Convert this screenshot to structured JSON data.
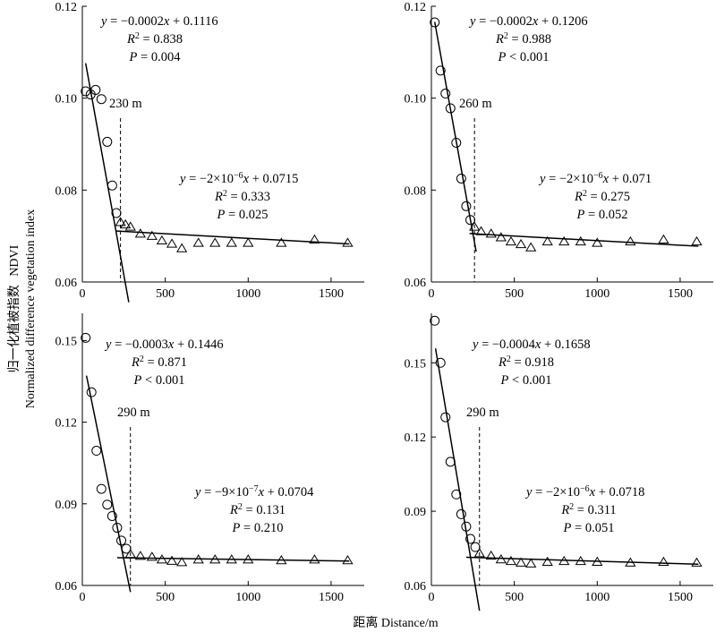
{
  "figure": {
    "y_axis_label_cn": "归一化植被指数",
    "y_axis_label_en": "NDVI",
    "y_axis_label_en2": "Normalized difference vegetation index",
    "x_axis_label": "距离 Distance/m"
  },
  "chart_data": [
    {
      "type": "scatter",
      "xlim": [
        0,
        1700
      ],
      "ylim": [
        0.06,
        0.12
      ],
      "xticks": [
        0,
        500,
        1000,
        1500
      ],
      "yticks": [
        0.06,
        0.08,
        0.1,
        0.12
      ],
      "ytick_labels": [
        "0.06",
        "0.08",
        "0.10",
        "0.12"
      ],
      "threshold": 230,
      "threshold_label": "230 m",
      "near_fit": {
        "eq": "y = −0.0002x + 0.1116",
        "r2": "R² = 0.838",
        "p": "P = 0.004",
        "slope": -0.0002,
        "intercept": 0.1116,
        "x_range": [
          20,
          280
        ]
      },
      "far_fit": {
        "eq": "y = −2×10⁻⁶x + 0.0715",
        "r2": "R² = 0.333",
        "p": "P = 0.025",
        "slope": -2e-06,
        "intercept": 0.0715,
        "x_range": [
          200,
          1610
        ]
      },
      "series": [
        {
          "name": "",
          "marker": "circle",
          "x": [
            20,
            50,
            80,
            115,
            150,
            180,
            205
          ],
          "y": [
            0.1015,
            0.1008,
            0.1018,
            0.0998,
            0.0905,
            0.081,
            0.075
          ]
        },
        {
          "name": "",
          "marker": "triangle",
          "x": [
            230,
            260,
            290,
            350,
            420,
            480,
            540,
            600,
            700,
            800,
            900,
            1000,
            1200,
            1400,
            1600
          ],
          "y": [
            0.073,
            0.0725,
            0.072,
            0.0705,
            0.07,
            0.069,
            0.0683,
            0.0673,
            0.0685,
            0.0685,
            0.0685,
            0.0685,
            0.0685,
            0.0692,
            0.0685
          ]
        }
      ]
    },
    {
      "type": "scatter",
      "xlim": [
        0,
        1700
      ],
      "ylim": [
        0.06,
        0.12
      ],
      "xticks": [
        0,
        500,
        1000,
        1500
      ],
      "yticks": [
        0.06,
        0.08,
        0.1,
        0.12
      ],
      "ytick_labels": [
        "0.06",
        "0.08",
        "0.10",
        "0.12"
      ],
      "threshold": 260,
      "threshold_label": "260 m",
      "near_fit": {
        "eq": "y = −0.0002x + 0.1206",
        "r2": "R² = 0.988",
        "p": "P < 0.001",
        "slope": -0.0002,
        "intercept": 0.1206,
        "x_range": [
          20,
          270
        ]
      },
      "far_fit": {
        "eq": "y = −2×10⁻⁶x + 0.071",
        "r2": "R² = 0.275",
        "p": "P = 0.052",
        "slope": -2e-06,
        "intercept": 0.071,
        "x_range": [
          230,
          1610
        ]
      },
      "series": [
        {
          "name": "",
          "marker": "circle",
          "x": [
            20,
            55,
            85,
            115,
            150,
            180,
            210,
            235
          ],
          "y": [
            0.1165,
            0.106,
            0.101,
            0.0978,
            0.0903,
            0.0825,
            0.0765,
            0.0735
          ]
        },
        {
          "name": "",
          "marker": "triangle",
          "x": [
            260,
            300,
            360,
            420,
            480,
            540,
            600,
            700,
            800,
            900,
            1000,
            1200,
            1400,
            1600
          ],
          "y": [
            0.072,
            0.071,
            0.0705,
            0.0697,
            0.0688,
            0.0682,
            0.0675,
            0.0688,
            0.0688,
            0.0688,
            0.0685,
            0.0688,
            0.0692,
            0.0688
          ]
        }
      ]
    },
    {
      "type": "scatter",
      "xlim": [
        0,
        1700
      ],
      "ylim": [
        0.06,
        0.16
      ],
      "xticks": [
        0,
        500,
        1000,
        1500
      ],
      "yticks": [
        0.06,
        0.09,
        0.12,
        0.15
      ],
      "ytick_labels": [
        "0.06",
        "0.09",
        "0.12",
        "0.15"
      ],
      "threshold": 290,
      "threshold_label": "290 m",
      "near_fit": {
        "eq": "y = −0.0003x + 0.1446",
        "r2": "R² = 0.871",
        "p": "P < 0.001",
        "slope": -0.0003,
        "intercept": 0.1446,
        "x_range": [
          25,
          290
        ]
      },
      "far_fit": {
        "eq": "y = −9×10⁻⁷x + 0.0704",
        "r2": "R² = 0.131",
        "p": "P = 0.210",
        "slope": -9e-07,
        "intercept": 0.0704,
        "x_range": [
          210,
          1610
        ]
      },
      "series": [
        {
          "name": "",
          "marker": "circle",
          "x": [
            20,
            55,
            85,
            115,
            150,
            180,
            210,
            235,
            265
          ],
          "y": [
            0.151,
            0.131,
            0.1095,
            0.0955,
            0.0897,
            0.0855,
            0.0812,
            0.0765,
            0.0735
          ]
        },
        {
          "name": "",
          "marker": "triangle",
          "x": [
            290,
            350,
            420,
            480,
            540,
            600,
            700,
            800,
            900,
            1000,
            1200,
            1400,
            1600
          ],
          "y": [
            0.0715,
            0.0708,
            0.0705,
            0.0695,
            0.069,
            0.0685,
            0.0695,
            0.0695,
            0.0695,
            0.0695,
            0.0692,
            0.0695,
            0.0692
          ]
        }
      ]
    },
    {
      "type": "scatter",
      "xlim": [
        0,
        1700
      ],
      "ylim": [
        0.06,
        0.17
      ],
      "xticks": [
        0,
        500,
        1000,
        1500
      ],
      "yticks": [
        0.06,
        0.09,
        0.12,
        0.15
      ],
      "ytick_labels": [
        "0.06",
        "0.09",
        "0.12",
        "0.15"
      ],
      "threshold": 290,
      "threshold_label": "290 m",
      "near_fit": {
        "eq": "y = −0.0004x + 0.1658",
        "r2": "R² = 0.918",
        "p": "P < 0.001",
        "slope": -0.0004,
        "intercept": 0.1658,
        "x_range": [
          25,
          290
        ]
      },
      "far_fit": {
        "eq": "y = −2×10⁻⁶x + 0.0718",
        "r2": "R² = 0.311",
        "p": "P = 0.051",
        "slope": -2e-06,
        "intercept": 0.0718,
        "x_range": [
          210,
          1610
        ]
      },
      "series": [
        {
          "name": "",
          "marker": "circle",
          "x": [
            20,
            55,
            85,
            115,
            150,
            180,
            210,
            235,
            265
          ],
          "y": [
            0.167,
            0.15,
            0.128,
            0.11,
            0.0968,
            0.0888,
            0.0838,
            0.0788,
            0.0755
          ]
        },
        {
          "name": "",
          "marker": "triangle",
          "x": [
            290,
            360,
            420,
            480,
            540,
            600,
            700,
            800,
            900,
            1000,
            1200,
            1400,
            1600
          ],
          "y": [
            0.073,
            0.072,
            0.0705,
            0.0698,
            0.0692,
            0.0688,
            0.0695,
            0.0698,
            0.0698,
            0.0695,
            0.0692,
            0.0695,
            0.0692
          ]
        }
      ]
    }
  ]
}
